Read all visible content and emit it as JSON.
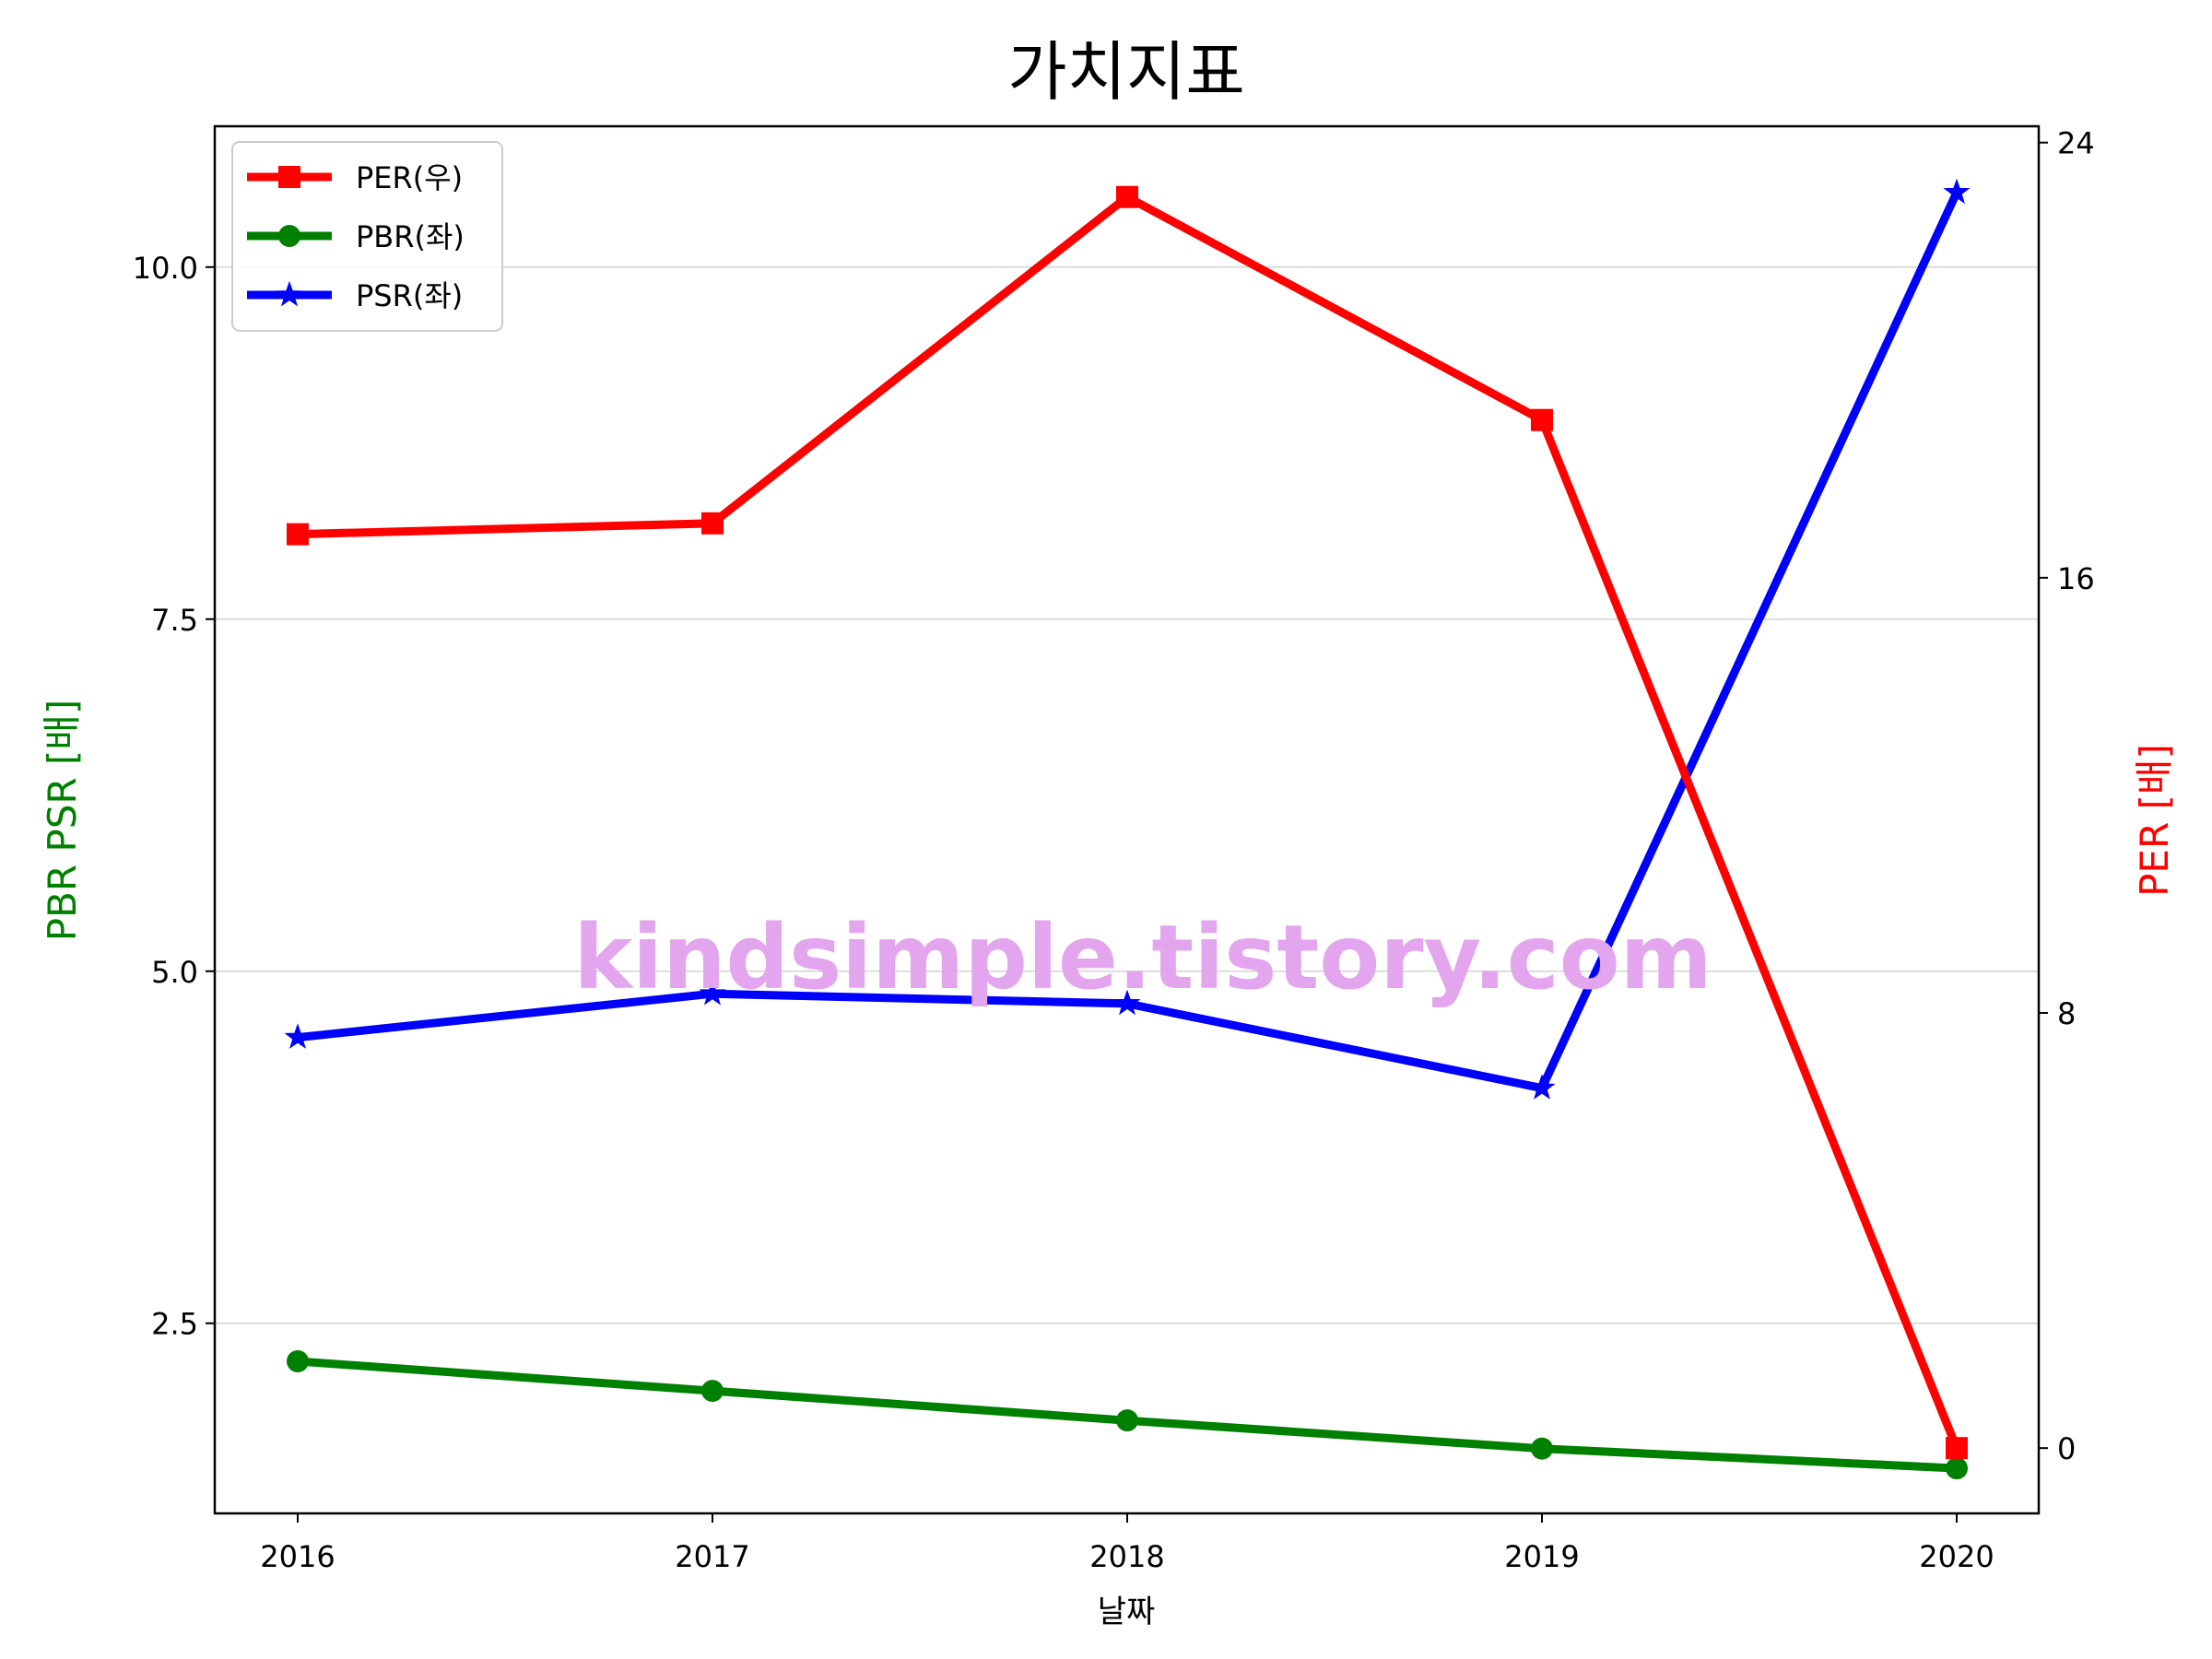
{
  "chart_data": {
    "type": "line",
    "title": "가치지표",
    "xlabel": "날짜",
    "ylabel_left": "PBR PSR [배]",
    "ylabel_right": "PER [배]",
    "categories": [
      "2016",
      "2017",
      "2018",
      "2019",
      "2020"
    ],
    "left_axis": {
      "ylim": [
        1.15,
        11.0
      ],
      "ticks": [
        "2.5",
        "5.0",
        "7.5",
        "10.0"
      ]
    },
    "right_axis": {
      "ylim": [
        -1.2,
        24.3
      ],
      "ticks": [
        "0",
        "8",
        "16",
        "24"
      ]
    },
    "grid": true,
    "legend_position": "top-left",
    "series": [
      {
        "name": "PER(우)",
        "axis": "right",
        "marker": "square",
        "color": "#ff0000",
        "values": [
          16.8,
          17.0,
          23.0,
          18.9,
          0.0
        ]
      },
      {
        "name": "PBR(좌)",
        "axis": "left",
        "marker": "circle",
        "color": "#008000",
        "values": [
          2.23,
          2.02,
          1.81,
          1.61,
          1.47
        ]
      },
      {
        "name": "PSR(좌)",
        "axis": "left",
        "marker": "star",
        "color": "#0000ff",
        "values": [
          4.53,
          4.84,
          4.77,
          4.17,
          10.53
        ]
      }
    ],
    "watermark": "kindsimple.tistory.com",
    "colors": {
      "left_label": "#008000",
      "right_label": "#ff0000",
      "watermark": "#e3a5ee"
    }
  }
}
